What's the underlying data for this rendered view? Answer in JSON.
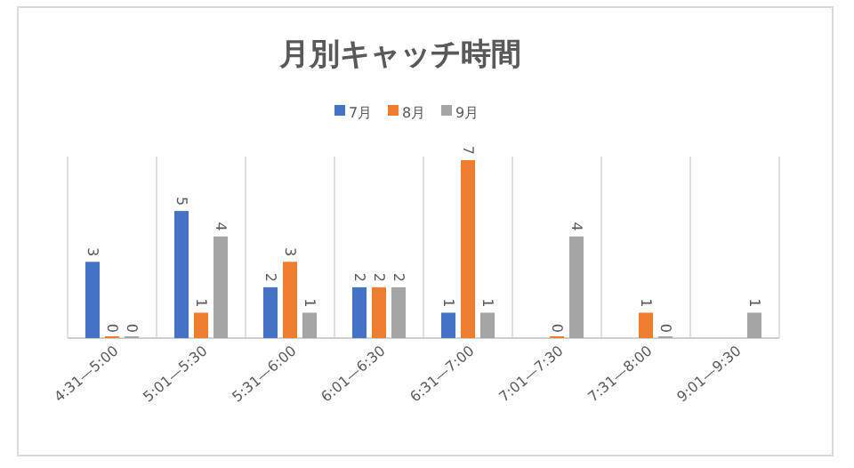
{
  "chart_data": {
    "type": "bar",
    "title": "月別キャッチ時間",
    "categories": [
      "4:31—5:00",
      "5:01—5:30",
      "5:31—6:00",
      "6:01—6:30",
      "6:31—7:00",
      "7:01—7:30",
      "7:31—8:00",
      "9:01—9:30"
    ],
    "series": [
      {
        "name": "7月",
        "color": "#4472c4",
        "values": [
          3,
          5,
          2,
          2,
          1,
          null,
          null,
          null
        ]
      },
      {
        "name": "8月",
        "color": "#ed7d31",
        "values": [
          0,
          1,
          3,
          2,
          7,
          0,
          1,
          null
        ]
      },
      {
        "name": "9月",
        "color": "#a5a5a5",
        "values": [
          0,
          4,
          1,
          2,
          1,
          4,
          0,
          1
        ]
      }
    ],
    "data_labels": true,
    "legend": "top",
    "grid": "x"
  }
}
